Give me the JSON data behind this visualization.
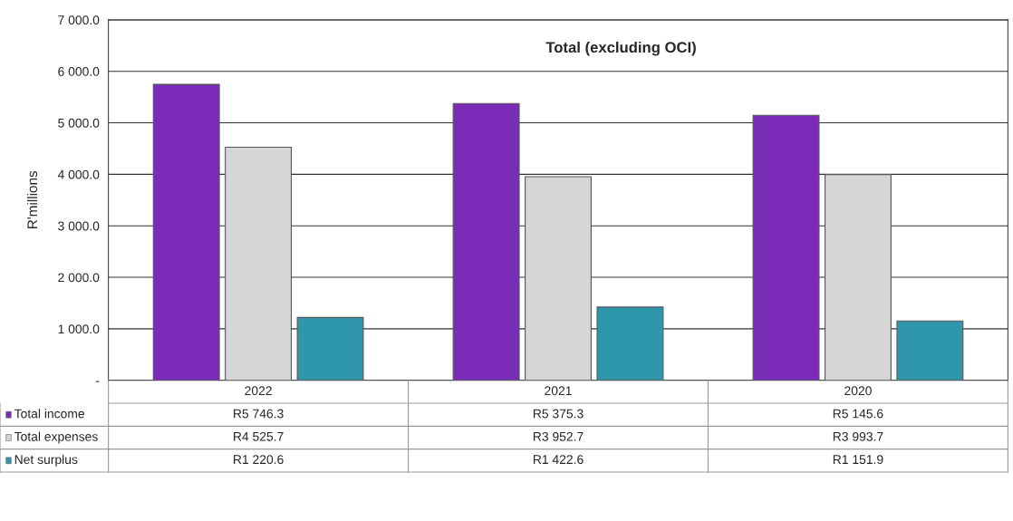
{
  "chart_data": {
    "type": "bar",
    "title": "Total (excluding OCI)",
    "ylabel": "R'millions",
    "categories": [
      "2022",
      "2021",
      "2020"
    ],
    "series": [
      {
        "name": "Total income",
        "color": "#7a2cb8",
        "values": [
          5746.3,
          5375.3,
          5145.6
        ],
        "value_labels": [
          "R5 746.3",
          "R5 375.3",
          "R5 145.6"
        ]
      },
      {
        "name": "Total expenses",
        "color": "#d6d6d6",
        "values": [
          4525.7,
          3952.7,
          3993.7
        ],
        "value_labels": [
          "R4 525.7",
          "R3 952.7",
          "R3 993.7"
        ]
      },
      {
        "name": "Net surplus",
        "color": "#2f97ab",
        "values": [
          1220.6,
          1422.6,
          1151.9
        ],
        "value_labels": [
          "R1 220.6",
          "R1 422.6",
          "R1 151.9"
        ]
      }
    ],
    "ylim": [
      0,
      7000
    ],
    "yticks": [
      {
        "value": 0,
        "label": "-"
      },
      {
        "value": 1000,
        "label": "1 000.0"
      },
      {
        "value": 2000,
        "label": "2 000.0"
      },
      {
        "value": 3000,
        "label": "3 000.0"
      },
      {
        "value": 4000,
        "label": "4 000.0"
      },
      {
        "value": 5000,
        "label": "5 000.0"
      },
      {
        "value": 6000,
        "label": "6 000.0"
      },
      {
        "value": 7000,
        "label": "7 000.0"
      }
    ],
    "grid": "y",
    "legend": "bottom"
  }
}
